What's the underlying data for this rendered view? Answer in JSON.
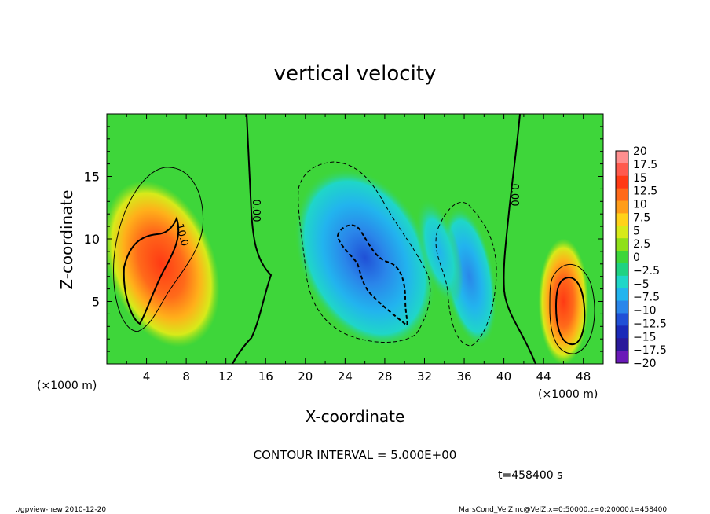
{
  "chart_data": {
    "type": "heatmap",
    "title": "vertical velocity",
    "xlabel": "X-coordinate",
    "ylabel": "Z-coordinate",
    "x_unit": "(×1000 m)",
    "x_ticks": [
      "4",
      "8",
      "12",
      "16",
      "20",
      "24",
      "28",
      "32",
      "36",
      "40",
      "44",
      "48"
    ],
    "y_ticks": [
      "5",
      "10",
      "15"
    ],
    "xlim": [
      0,
      50
    ],
    "ylim": [
      0,
      20
    ],
    "colorbar": {
      "labels": [
        "20",
        "17.5",
        "15",
        "12.5",
        "10",
        "7.5",
        "5",
        "2.5",
        "0",
        "−2.5",
        "−5",
        "−7.5",
        "−10",
        "−12.5",
        "−15",
        "−17.5",
        "−20"
      ],
      "colors": [
        "#ff8f8f",
        "#ff5a4d",
        "#ff3a14",
        "#ff6a1a",
        "#ff9d1a",
        "#ffd21a",
        "#d7ea1a",
        "#8fe01a",
        "#3ed63a",
        "#1fd282",
        "#1fd6c8",
        "#22b4ee",
        "#2a86ea",
        "#2050d6",
        "#1a2ab8",
        "#2a1a9a",
        "#6a1ab8"
      ]
    },
    "blobs": [
      {
        "x": 5.5,
        "z": 8.0,
        "value": 14
      },
      {
        "x": 46.0,
        "z": 5.0,
        "value": 13
      },
      {
        "x": 26.0,
        "z": 8.5,
        "value": -12
      },
      {
        "x": 36.5,
        "z": 7.0,
        "value": -8
      },
      {
        "x": 33.5,
        "z": 9.0,
        "value": -4
      }
    ],
    "contour_labels": [
      "0.00",
      "0.00",
      "10.0"
    ],
    "contour_interval_text": "CONTOUR INTERVAL = 5.000E+00",
    "time_text": "t=458400 s"
  },
  "footer": {
    "left": "./gpview-new  2010-12-20",
    "right": "MarsCond_VelZ.nc@VelZ,x=0:50000,z=0:20000,t=458400"
  }
}
